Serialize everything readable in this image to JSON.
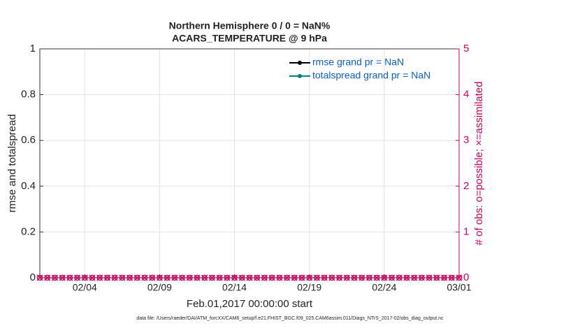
{
  "chart_data": {
    "type": "line",
    "title": "Northern Hemisphere 0 / 0 = NaN%",
    "subtitle": "ACARS_TEMPERATURE @ 9 hPa",
    "x_label": "Feb.01,2017 00:00:00 start",
    "y_label": "rmse and totalspread",
    "y2_label": "# of obs: o=possible; ×=assimilated",
    "footnote": "data file: /Users/raeder/DAI/ATM_forcXX/CAM6_setup/f.e21.FHIST_BGC.f09_025.CAM6assim.011/Diags_NTrS_2017-02/obs_diag_output.nc",
    "x": [
      0,
      0.5,
      1,
      1.5,
      2,
      2.5,
      3,
      3.5,
      4,
      4.5,
      5,
      5.5,
      6,
      6.5,
      7,
      7.5,
      8,
      8.5,
      9,
      9.5,
      10,
      10.5,
      11,
      11.5,
      12,
      12.5,
      13,
      13.5,
      14,
      14.5,
      15,
      15.5,
      16,
      16.5,
      17,
      17.5,
      18,
      18.5,
      19,
      19.5,
      20,
      20.5,
      21,
      21.5,
      22,
      22.5,
      23,
      23.5,
      24,
      24.5,
      25,
      25.5,
      26,
      26.5,
      27,
      27.5,
      28
    ],
    "xlim": [
      0,
      28
    ],
    "xticks": [
      {
        "value": 3,
        "label": "02/04"
      },
      {
        "value": 8,
        "label": "02/09"
      },
      {
        "value": 13,
        "label": "02/14"
      },
      {
        "value": 18,
        "label": "02/19"
      },
      {
        "value": 23,
        "label": "02/24"
      },
      {
        "value": 28,
        "label": "03/01"
      }
    ],
    "ylim": [
      0,
      1
    ],
    "yticks": [
      0,
      0.2,
      0.4,
      0.6,
      0.8,
      1
    ],
    "y2lim": [
      0,
      5
    ],
    "y2ticks": [
      0,
      1,
      2,
      3,
      4,
      5
    ],
    "y2_color": "#d6005b",
    "grid": true,
    "legend": "upper right",
    "legend_text_color": "#0a5fd6",
    "series": [
      {
        "name": "rmse grand pr = NaN",
        "color": "#000000",
        "values": [
          null,
          null,
          null,
          null,
          null,
          null,
          null,
          null,
          null,
          null,
          null,
          null,
          null,
          null,
          null,
          null,
          null,
          null,
          null,
          null,
          null,
          null,
          null,
          null,
          null,
          null,
          null,
          null,
          null,
          null,
          null,
          null,
          null,
          null,
          null,
          null,
          null,
          null,
          null,
          null,
          null,
          null,
          null,
          null,
          null,
          null,
          null,
          null,
          null,
          null,
          null,
          null,
          null,
          null,
          null,
          null,
          null
        ]
      },
      {
        "name": "totalspread grand pr = NaN",
        "color": "#008080",
        "values": [
          null,
          null,
          null,
          null,
          null,
          null,
          null,
          null,
          null,
          null,
          null,
          null,
          null,
          null,
          null,
          null,
          null,
          null,
          null,
          null,
          null,
          null,
          null,
          null,
          null,
          null,
          null,
          null,
          null,
          null,
          null,
          null,
          null,
          null,
          null,
          null,
          null,
          null,
          null,
          null,
          null,
          null,
          null,
          null,
          null,
          null,
          null,
          null,
          null,
          null,
          null,
          null,
          null,
          null,
          null,
          null,
          null
        ]
      },
      {
        "axis": "y2",
        "color": "#d6005b",
        "values": [
          0,
          0,
          0,
          0,
          0,
          0,
          0,
          0,
          0,
          0,
          0,
          0,
          0,
          0,
          0,
          0,
          0,
          0,
          0,
          0,
          0,
          0,
          0,
          0,
          0,
          0,
          0,
          0,
          0,
          0,
          0,
          0,
          0,
          0,
          0,
          0,
          0,
          0,
          0,
          0,
          0,
          0,
          0,
          0,
          0,
          0,
          0,
          0,
          0,
          0,
          0,
          0,
          0,
          0,
          0,
          0,
          0
        ]
      }
    ]
  }
}
